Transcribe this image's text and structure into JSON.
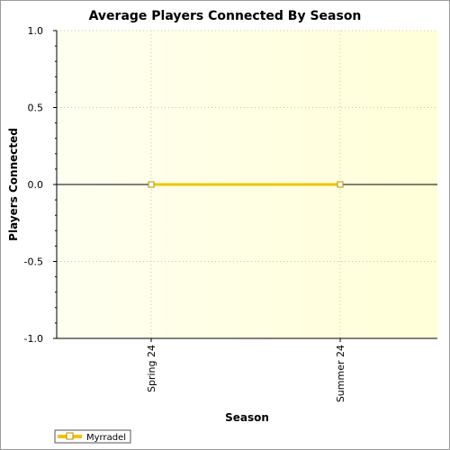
{
  "chart_data": {
    "type": "line",
    "title": "Average Players Connected By Season",
    "xlabel": "Season",
    "ylabel": "Players Connected",
    "categories": [
      "Spring 24",
      "Summer 24"
    ],
    "ylim": [
      -1.0,
      1.0
    ],
    "yticks": [
      "1.0",
      "0.5",
      "0.0",
      "-0.5",
      "-1.0"
    ],
    "ytick_values": [
      1.0,
      0.5,
      0.0,
      -0.5,
      -1.0
    ],
    "series": [
      {
        "name": "Myrradel",
        "values": [
          0,
          0
        ],
        "color": "#f0c400"
      }
    ],
    "grid": true,
    "legend_position": "bottom-left"
  },
  "colors": {
    "plot_background_left": "#fffff0",
    "plot_background_right": "#ffffd8",
    "gridline": "#c8c8a0",
    "zero_line": "#000000"
  }
}
